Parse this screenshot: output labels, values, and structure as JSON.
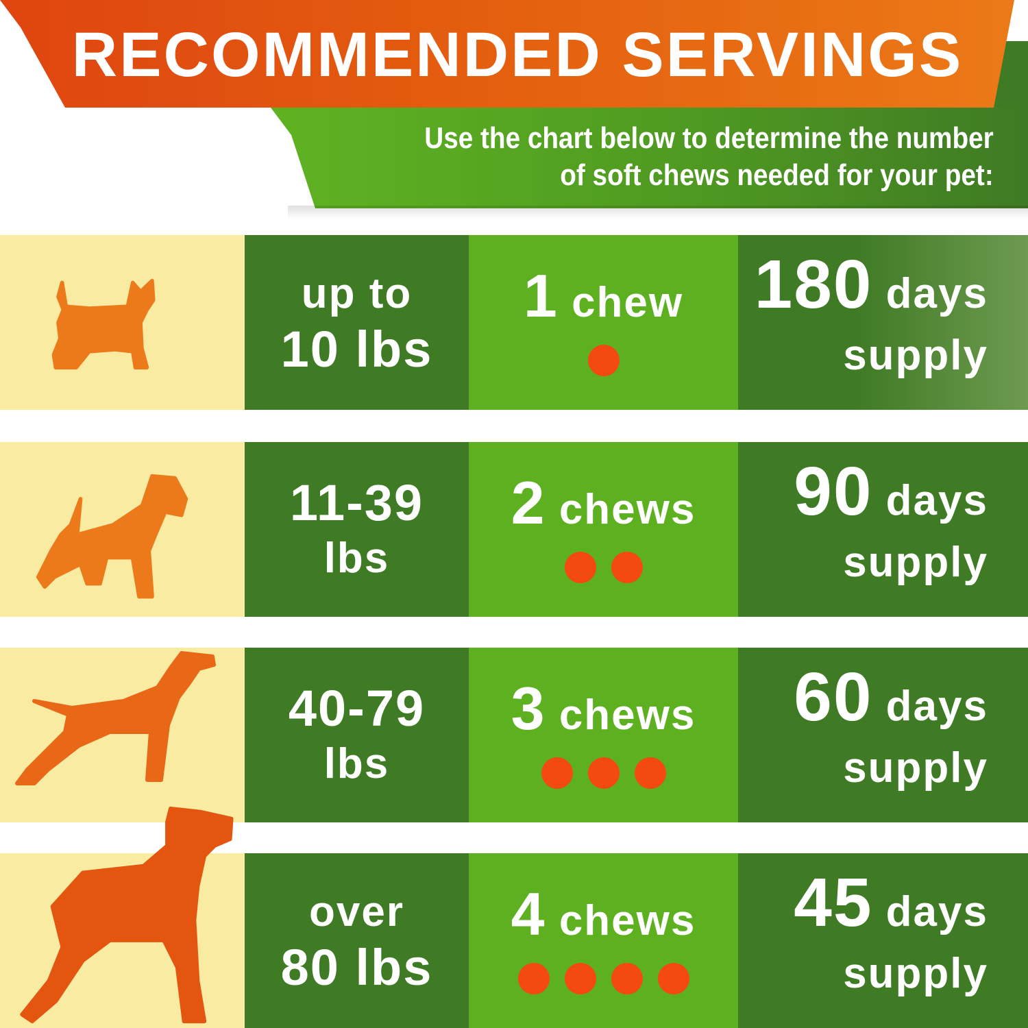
{
  "header": {
    "title": "RECOMMENDED SERVINGS",
    "subtitle_line1": "Use the chart below to determine the number",
    "subtitle_line2": "of soft chews needed for your pet:"
  },
  "colors": {
    "orange": "#e4600f",
    "dark_green": "#3f7a24",
    "light_green": "#5db01f",
    "pale_yellow": "#faeba3",
    "dot": "#f44a12"
  },
  "rows": [
    {
      "icon": "small-dog-icon",
      "weight_line1": "up to",
      "weight_line2": "10 lbs",
      "chews_num": "1",
      "chews_unit": "chew",
      "dots": 1,
      "days_num": "180",
      "days_unit": "days",
      "supply": "supply"
    },
    {
      "icon": "terrier-dog-icon",
      "weight_line1": "11-39",
      "weight_line2": "lbs",
      "chews_num": "2",
      "chews_unit": "chews",
      "dots": 2,
      "days_num": "90",
      "days_unit": "days",
      "supply": "supply"
    },
    {
      "icon": "pointer-dog-icon",
      "weight_line1": "40-79",
      "weight_line2": "lbs",
      "chews_num": "3",
      "chews_unit": "chews",
      "dots": 3,
      "days_num": "60",
      "days_unit": "days",
      "supply": "supply"
    },
    {
      "icon": "great-dane-dog-icon",
      "weight_line1": "over",
      "weight_line2": "80 lbs",
      "chews_num": "4",
      "chews_unit": "chews",
      "dots": 4,
      "days_num": "45",
      "days_unit": "days",
      "supply": "supply"
    }
  ]
}
